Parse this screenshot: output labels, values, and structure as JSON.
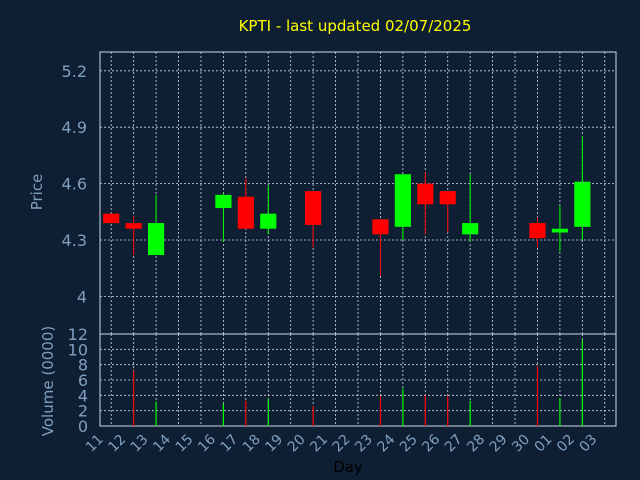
{
  "chart_data": [
    {
      "type": "candlestick",
      "title": "KPTI - last updated 02/07/2025",
      "ylabel": "Price",
      "ylim": [
        3.8,
        5.3
      ],
      "yticks": [
        "4",
        "4.3",
        "4.6",
        "4.9",
        "5.2"
      ],
      "ytick_values": [
        4.0,
        4.3,
        4.6,
        4.9,
        5.2
      ],
      "grid": true,
      "colors": {
        "up": "#00ff00",
        "down": "#ff0000",
        "grid": "#cfd8e3",
        "background": "#0f1f33",
        "axis_text": "#7f9fbf",
        "title": "#ffff00"
      },
      "candles": [
        {
          "day": "11",
          "open": 4.44,
          "high": 4.44,
          "low": 4.39,
          "close": 4.39
        },
        {
          "day": "12",
          "open": 4.39,
          "high": 4.43,
          "low": 4.22,
          "close": 4.36
        },
        {
          "day": "13",
          "open": 4.22,
          "high": 4.54,
          "low": 4.22,
          "close": 4.39
        },
        {
          "day": "16",
          "open": 4.47,
          "high": 4.55,
          "low": 4.29,
          "close": 4.54
        },
        {
          "day": "17",
          "open": 4.53,
          "high": 4.63,
          "low": 4.36,
          "close": 4.36
        },
        {
          "day": "18",
          "open": 4.36,
          "high": 4.59,
          "low": 4.33,
          "close": 4.44
        },
        {
          "day": "20",
          "open": 4.56,
          "high": 4.56,
          "low": 4.26,
          "close": 4.38
        },
        {
          "day": "23",
          "open": 4.41,
          "high": 4.41,
          "low": 4.11,
          "close": 4.33
        },
        {
          "day": "24",
          "open": 4.37,
          "high": 4.65,
          "low": 4.3,
          "close": 4.65
        },
        {
          "day": "25",
          "open": 4.6,
          "high": 4.66,
          "low": 4.33,
          "close": 4.49
        },
        {
          "day": "26",
          "open": 4.56,
          "high": 4.56,
          "low": 4.34,
          "close": 4.49
        },
        {
          "day": "27",
          "open": 4.33,
          "high": 4.65,
          "low": 4.29,
          "close": 4.39
        },
        {
          "day": "30",
          "open": 4.39,
          "high": 4.42,
          "low": 4.26,
          "close": 4.31
        },
        {
          "day": "01",
          "open": 4.34,
          "high": 4.48,
          "low": 4.24,
          "close": 4.36
        },
        {
          "day": "02",
          "open": 4.37,
          "high": 4.85,
          "low": 4.3,
          "close": 4.61
        }
      ]
    },
    {
      "type": "bar",
      "ylabel": "Volume (0000)",
      "xlabel": "Day",
      "ylim": [
        0,
        12
      ],
      "yticks": [
        "0",
        "2",
        "4",
        "6",
        "8",
        "10",
        "12"
      ],
      "ytick_values": [
        0,
        2,
        4,
        6,
        8,
        10,
        12
      ],
      "categories": [
        "11",
        "12",
        "13",
        "14",
        "15",
        "16",
        "17",
        "18",
        "19",
        "20",
        "21",
        "22",
        "23",
        "24",
        "25",
        "26",
        "27",
        "28",
        "29",
        "30",
        "01",
        "02",
        "03"
      ],
      "bars": [
        {
          "day": "12",
          "value": 7.2,
          "color": "#ff0000"
        },
        {
          "day": "13",
          "value": 3.2,
          "color": "#00ff00"
        },
        {
          "day": "16",
          "value": 2.9,
          "color": "#00ff00"
        },
        {
          "day": "17",
          "value": 3.3,
          "color": "#ff0000"
        },
        {
          "day": "18",
          "value": 3.5,
          "color": "#00ff00"
        },
        {
          "day": "20",
          "value": 2.6,
          "color": "#ff0000"
        },
        {
          "day": "23",
          "value": 3.9,
          "color": "#ff0000"
        },
        {
          "day": "24",
          "value": 4.9,
          "color": "#00ff00"
        },
        {
          "day": "25",
          "value": 4.0,
          "color": "#ff0000"
        },
        {
          "day": "26",
          "value": 3.9,
          "color": "#ff0000"
        },
        {
          "day": "27",
          "value": 3.3,
          "color": "#00ff00"
        },
        {
          "day": "30",
          "value": 7.8,
          "color": "#ff0000"
        },
        {
          "day": "01",
          "value": 3.6,
          "color": "#00ff00"
        },
        {
          "day": "02",
          "value": 11.2,
          "color": "#00ff00"
        }
      ]
    }
  ]
}
